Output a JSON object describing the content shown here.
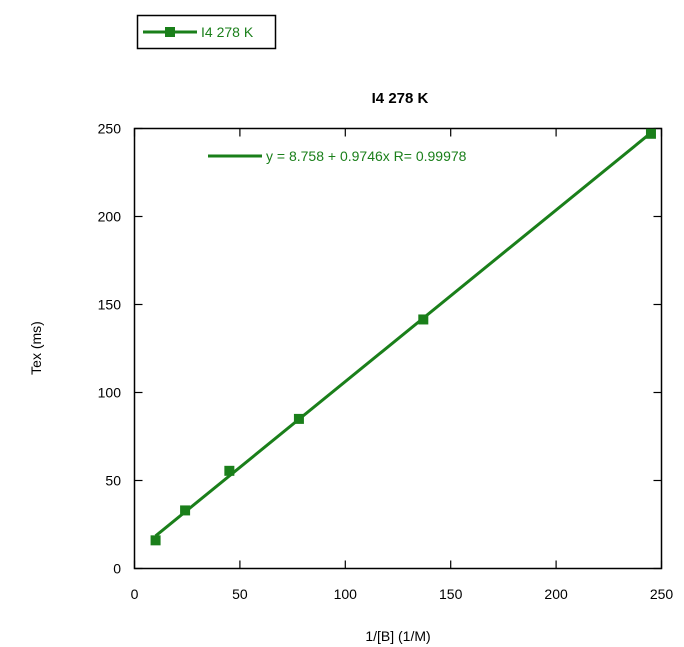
{
  "chart_data": {
    "type": "scatter",
    "title": "I4 278 K",
    "xlabel": "1/[B] (1/M)",
    "ylabel": "Tex (ms)",
    "xlim": [
      0,
      250
    ],
    "ylim": [
      0,
      250
    ],
    "xticks": [
      0,
      50,
      100,
      150,
      200,
      250
    ],
    "yticks": [
      0,
      50,
      100,
      150,
      200,
      250
    ],
    "grid": false,
    "legend_position": "top-left outside",
    "series": [
      {
        "name": "I4 278 K",
        "color": "#1a7f1a",
        "marker": "square",
        "x": [
          10,
          24,
          45,
          78,
          137,
          245
        ],
        "y": [
          16,
          33,
          55.5,
          85,
          141.5,
          247
        ]
      }
    ],
    "fit": {
      "label": "y = 8.758 + 0.9746x   R= 0.99978",
      "intercept": 8.758,
      "slope": 0.9746,
      "x_range": [
        10,
        245
      ]
    }
  }
}
